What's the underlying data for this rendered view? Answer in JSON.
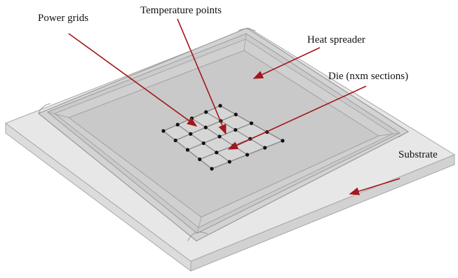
{
  "labels": {
    "power_grids": "Power grids",
    "temperature_points": "Temperature points",
    "heat_spreader": "Heat spreader",
    "die": "Die (nxm sections)",
    "substrate": "Substrate"
  },
  "grid": {
    "rows": 4,
    "cols": 4
  },
  "colors": {
    "arrow": "#a3161b",
    "substrate_fill": "#e6e6e6",
    "spreader_fill": "#cfcfcf",
    "outline": "#9a9a9a",
    "grid_line": "#8a8a8a",
    "point": "#111111"
  }
}
